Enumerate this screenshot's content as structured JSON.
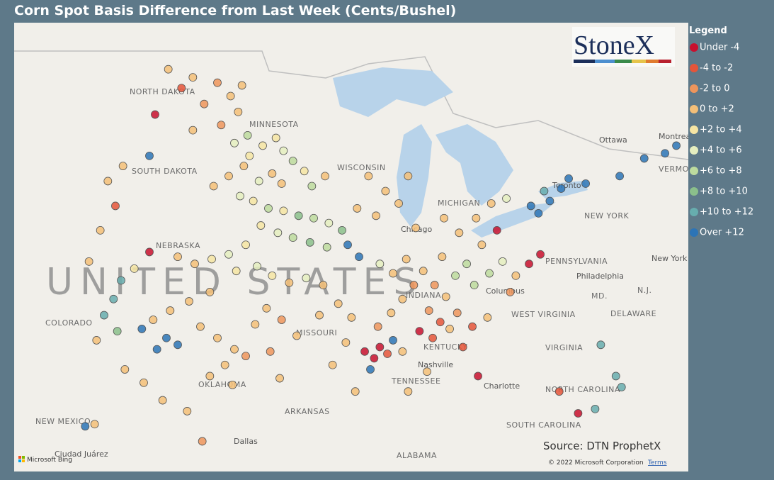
{
  "title": "Corn Spot Basis Difference from Last Week (Cents/Bushel)",
  "legend": {
    "title": "Legend",
    "classes": [
      {
        "name": "Under -4",
        "color": "#c8102e"
      },
      {
        "name": "-4 to -2",
        "color": "#e5553a"
      },
      {
        "name": "-2 to 0",
        "color": "#ee955c"
      },
      {
        "name": "0 to +2",
        "color": "#f4bf78"
      },
      {
        "name": "+2 to +4",
        "color": "#f6e5a3"
      },
      {
        "name": "+4 to +6",
        "color": "#e5eebf"
      },
      {
        "name": "+6 to +8",
        "color": "#bddb9e"
      },
      {
        "name": "+8 to +10",
        "color": "#8bbf8b"
      },
      {
        "name": "+10 to +12",
        "color": "#67adae"
      },
      {
        "name": "Over +12",
        "color": "#2c74b6"
      }
    ]
  },
  "logo": "StoneX",
  "source": "Source: DTN ProphetX",
  "copyright": "© 2022 Microsoft Corporation",
  "terms": "Terms",
  "bing": "Microsoft Bing",
  "labels": [
    "NORTH DAKOTA",
    "MINNESOTA",
    "SOUTH DAKOTA",
    "WISCONSIN",
    "NEBRASKA",
    "UNITED STATES",
    "COLORADO",
    "MISSOURI",
    "KENTUCKY",
    "TENNESSEE",
    "OKLAHOMA",
    "ARKANSAS",
    "NEW MEXICO",
    "ALABAMA",
    "WEST VIRGINIA",
    "VIRGINIA",
    "NORTH CAROLINA",
    "SOUTH CAROLINA",
    "PENNSYLVANIA",
    "NEW YORK",
    "DELAWARE",
    "MD.",
    "N.J.",
    "VERMONT",
    "MICHIGAN",
    "INDIANA",
    "Ottawa",
    "Montreal",
    "Toronto",
    "Chicago",
    "Columbus",
    "Philadelphia",
    "New York",
    "Nashville",
    "Charlotte",
    "Dallas",
    "Ciudad Juárez"
  ],
  "points": [
    [
      -100.8,
      48.5,
      3
    ],
    [
      -99.5,
      48.2,
      3
    ],
    [
      -98.2,
      48.0,
      2
    ],
    [
      -97.5,
      47.5,
      3
    ],
    [
      -100.1,
      47.8,
      1
    ],
    [
      -98.9,
      47.2,
      2
    ],
    [
      -97.1,
      46.9,
      3
    ],
    [
      -98.0,
      46.4,
      2
    ],
    [
      -99.5,
      46.2,
      3
    ],
    [
      -96.9,
      47.9,
      3
    ],
    [
      -101.5,
      46.8,
      0
    ],
    [
      -101.8,
      45.2,
      9
    ],
    [
      -96.6,
      46.0,
      6
    ],
    [
      -97.3,
      45.7,
      5
    ],
    [
      -96.5,
      45.2,
      4
    ],
    [
      -95.8,
      45.6,
      4
    ],
    [
      -95.1,
      45.9,
      4
    ],
    [
      -94.7,
      45.4,
      5
    ],
    [
      -94.2,
      45.0,
      6
    ],
    [
      -93.6,
      44.6,
      4
    ],
    [
      -95.3,
      44.5,
      3
    ],
    [
      -96.0,
      44.2,
      5
    ],
    [
      -94.8,
      44.1,
      3
    ],
    [
      -93.2,
      44.0,
      6
    ],
    [
      -92.5,
      44.4,
      3
    ],
    [
      -96.8,
      44.8,
      3
    ],
    [
      -97.6,
      44.4,
      3
    ],
    [
      -98.4,
      44.0,
      3
    ],
    [
      -97.0,
      43.6,
      5
    ],
    [
      -96.3,
      43.4,
      4
    ],
    [
      -95.5,
      43.1,
      6
    ],
    [
      -94.7,
      43.0,
      4
    ],
    [
      -93.9,
      42.8,
      7
    ],
    [
      -93.1,
      42.7,
      6
    ],
    [
      -92.3,
      42.5,
      5
    ],
    [
      -91.6,
      42.2,
      7
    ],
    [
      -95.9,
      42.4,
      4
    ],
    [
      -95.0,
      42.1,
      5
    ],
    [
      -94.2,
      41.9,
      6
    ],
    [
      -93.3,
      41.7,
      7
    ],
    [
      -92.4,
      41.5,
      6
    ],
    [
      -91.3,
      41.6,
      9
    ],
    [
      -90.7,
      41.1,
      9
    ],
    [
      -96.7,
      41.6,
      4
    ],
    [
      -97.6,
      41.2,
      5
    ],
    [
      -98.5,
      41.0,
      4
    ],
    [
      -99.4,
      40.8,
      3
    ],
    [
      -100.3,
      41.1,
      3
    ],
    [
      -101.8,
      41.3,
      0
    ],
    [
      -102.6,
      40.6,
      4
    ],
    [
      -97.2,
      40.5,
      4
    ],
    [
      -96.1,
      40.7,
      5
    ],
    [
      -95.3,
      40.3,
      4
    ],
    [
      -94.4,
      40.0,
      3
    ],
    [
      -93.5,
      40.2,
      5
    ],
    [
      -92.6,
      39.9,
      3
    ],
    [
      -98.6,
      39.6,
      3
    ],
    [
      -99.7,
      39.2,
      3
    ],
    [
      -100.7,
      38.8,
      3
    ],
    [
      -101.6,
      38.4,
      3
    ],
    [
      -100.9,
      37.6,
      9
    ],
    [
      -100.3,
      37.3,
      9
    ],
    [
      -101.4,
      37.1,
      9
    ],
    [
      -99.1,
      38.1,
      3
    ],
    [
      -98.2,
      37.6,
      3
    ],
    [
      -97.3,
      37.1,
      3
    ],
    [
      -97.8,
      36.4,
      3
    ],
    [
      -98.6,
      35.9,
      3
    ],
    [
      -97.4,
      35.5,
      3
    ],
    [
      -96.7,
      36.8,
      2
    ],
    [
      -95.6,
      38.9,
      3
    ],
    [
      -94.8,
      38.4,
      2
    ],
    [
      -94.0,
      37.7,
      3
    ],
    [
      -92.8,
      38.6,
      3
    ],
    [
      -91.8,
      39.1,
      3
    ],
    [
      -91.1,
      38.5,
      3
    ],
    [
      -90.4,
      37.0,
      0
    ],
    [
      -89.6,
      37.2,
      0
    ],
    [
      -89.9,
      36.7,
      0
    ],
    [
      -89.2,
      36.9,
      1
    ],
    [
      -89.7,
      38.1,
      2
    ],
    [
      -89.0,
      38.7,
      3
    ],
    [
      -88.4,
      39.3,
      3
    ],
    [
      -87.8,
      39.9,
      2
    ],
    [
      -88.9,
      40.4,
      3
    ],
    [
      -89.6,
      40.8,
      5
    ],
    [
      -88.2,
      41.0,
      3
    ],
    [
      -87.3,
      40.5,
      3
    ],
    [
      -86.7,
      39.9,
      2
    ],
    [
      -86.1,
      39.4,
      3
    ],
    [
      -85.6,
      40.3,
      6
    ],
    [
      -85.0,
      40.8,
      6
    ],
    [
      -86.3,
      41.1,
      3
    ],
    [
      -87.0,
      38.8,
      2
    ],
    [
      -86.4,
      38.3,
      1
    ],
    [
      -85.5,
      38.7,
      2
    ],
    [
      -84.6,
      39.9,
      6
    ],
    [
      -83.8,
      40.4,
      6
    ],
    [
      -83.1,
      40.9,
      5
    ],
    [
      -82.4,
      40.3,
      3
    ],
    [
      -82.7,
      39.6,
      2
    ],
    [
      -81.7,
      40.8,
      0
    ],
    [
      -81.1,
      41.2,
      0
    ],
    [
      -84.2,
      41.6,
      3
    ],
    [
      -85.4,
      42.1,
      3
    ],
    [
      -84.5,
      42.7,
      3
    ],
    [
      -83.7,
      43.3,
      3
    ],
    [
      -82.9,
      43.5,
      5
    ],
    [
      -83.4,
      42.2,
      0
    ],
    [
      -90.2,
      44.4,
      3
    ],
    [
      -89.3,
      43.8,
      3
    ],
    [
      -88.6,
      43.3,
      3
    ],
    [
      -90.8,
      43.1,
      3
    ],
    [
      -89.8,
      42.8,
      3
    ],
    [
      -88.1,
      44.4,
      3
    ],
    [
      -80.6,
      43.4,
      9
    ],
    [
      -80.0,
      43.9,
      9
    ],
    [
      -79.6,
      44.3,
      9
    ],
    [
      -81.2,
      42.9,
      9
    ],
    [
      -80.9,
      43.8,
      8
    ],
    [
      -81.6,
      43.2,
      9
    ],
    [
      -78.7,
      44.1,
      9
    ],
    [
      -76.9,
      44.4,
      9
    ],
    [
      -75.6,
      45.1,
      9
    ],
    [
      -73.9,
      45.6,
      9
    ],
    [
      -74.5,
      45.3,
      9
    ],
    [
      -77.1,
      35.9,
      8
    ],
    [
      -76.8,
      35.4,
      8
    ],
    [
      -78.2,
      34.4,
      8
    ],
    [
      -79.1,
      34.2,
      0
    ],
    [
      -77.9,
      37.3,
      8
    ],
    [
      -80.1,
      35.2,
      1
    ],
    [
      -84.4,
      35.9,
      0
    ],
    [
      -85.2,
      37.2,
      1
    ],
    [
      -87.1,
      36.1,
      3
    ],
    [
      -88.1,
      35.2,
      3
    ],
    [
      -90.1,
      36.2,
      9
    ],
    [
      -88.9,
      37.5,
      9
    ],
    [
      -87.5,
      37.9,
      0
    ],
    [
      -86.8,
      37.6,
      1
    ],
    [
      -103.3,
      40.1,
      8
    ],
    [
      -103.7,
      39.3,
      8
    ],
    [
      -104.2,
      38.6,
      8
    ],
    [
      -102.2,
      38.0,
      9
    ],
    [
      -103.5,
      37.9,
      7
    ],
    [
      -104.6,
      37.5,
      3
    ],
    [
      -103.1,
      36.2,
      3
    ],
    [
      -105.2,
      33.6,
      9
    ],
    [
      -104.7,
      33.7,
      3
    ],
    [
      -99.0,
      32.9,
      2
    ],
    [
      -101.1,
      34.8,
      3
    ],
    [
      -102.1,
      35.6,
      3
    ],
    [
      -99.8,
      34.3,
      3
    ],
    [
      -95.4,
      37.0,
      2
    ],
    [
      -96.2,
      38.2,
      3
    ],
    [
      -91.4,
      37.4,
      3
    ],
    [
      -92.1,
      36.4,
      3
    ],
    [
      -94.9,
      35.8,
      3
    ],
    [
      -90.9,
      35.2,
      3
    ],
    [
      -104.0,
      44.2,
      3
    ],
    [
      -103.6,
      43.2,
      1
    ],
    [
      -104.4,
      42.2,
      3
    ],
    [
      -103.2,
      44.8,
      3
    ],
    [
      -105.0,
      40.9,
      3
    ],
    [
      -86.2,
      42.7,
      3
    ],
    [
      -87.7,
      42.3,
      3
    ],
    [
      -83.9,
      38.5,
      3
    ],
    [
      -84.7,
      38.1,
      1
    ],
    [
      -85.9,
      38.0,
      3
    ],
    [
      -88.4,
      37.0,
      3
    ]
  ]
}
